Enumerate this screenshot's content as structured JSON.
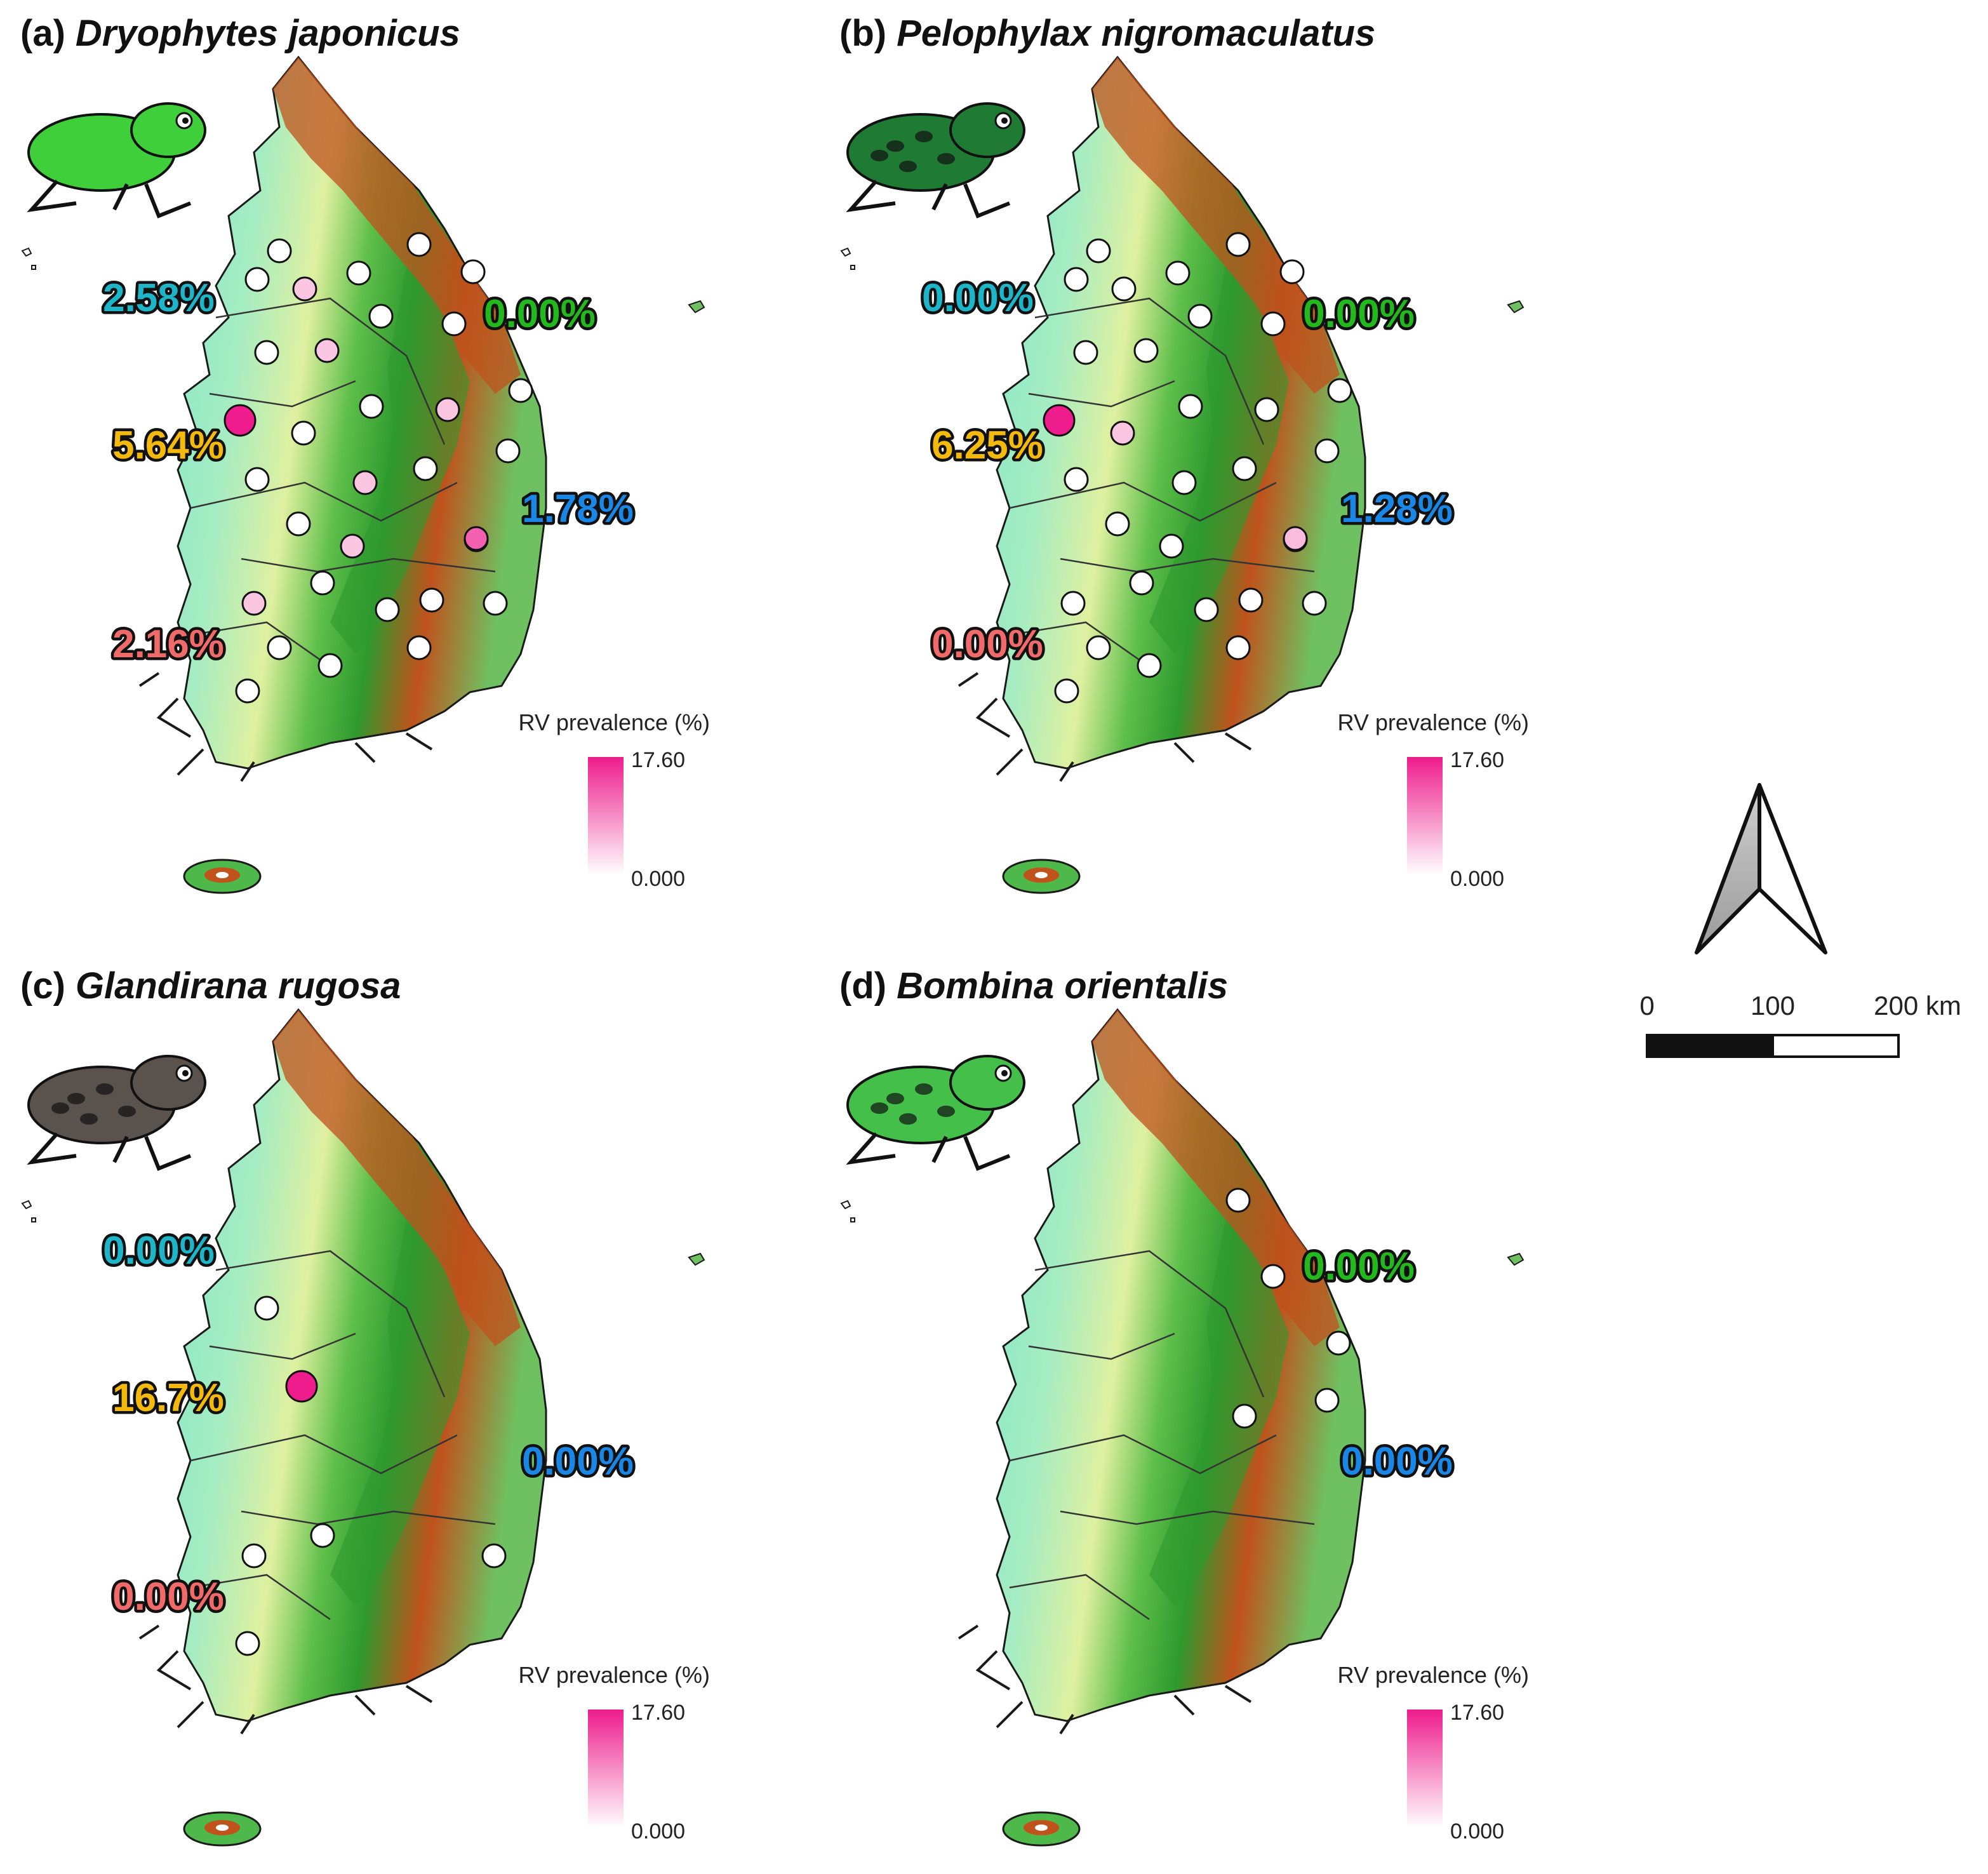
{
  "colors": {
    "accent_magenta": "#ee1c8c",
    "low_white": "#ffffff",
    "lowland": "#7fe8c8",
    "midland": "#dff0a0",
    "highland": "#2e9a2e",
    "peak": "#c0521c",
    "region_west": "#1fb5c8",
    "region_east": "#22b81e",
    "region_center": "#f3b90c",
    "region_southeast": "#1a87e6",
    "region_southwest": "#f06a6a"
  },
  "panels": [
    {
      "label": "(a)",
      "species": "Dryophytes japonicus",
      "icon": "tree-frog-icon",
      "stats": {
        "west": "2.58%",
        "east": "0.00%",
        "center": "5.64%",
        "southeast": "1.78%",
        "southwest": "2.16%"
      },
      "sites": [
        0,
        0,
        0.25,
        0,
        0,
        0,
        0,
        0,
        0.25,
        0,
        0,
        0.25,
        0,
        1,
        0,
        0.25,
        0,
        0,
        0,
        0,
        0.25,
        0,
        0.25,
        0,
        0,
        0.7,
        0,
        0,
        0,
        0,
        0.25,
        0
      ]
    },
    {
      "label": "(b)",
      "species": "Pelophylax nigromaculatus",
      "icon": "pond-frog-icon",
      "stats": {
        "west": "0.00%",
        "east": "0.00%",
        "center": "6.25%",
        "southeast": "1.28%",
        "southwest": "0.00%"
      },
      "sites": [
        0,
        0,
        0,
        0,
        0,
        0,
        0,
        0,
        0,
        0,
        0,
        0,
        0,
        1,
        0.25,
        0,
        0,
        0,
        0,
        0,
        0,
        0,
        0,
        0,
        0,
        0.3,
        0,
        0,
        0,
        0,
        0,
        0
      ]
    },
    {
      "label": "(c)",
      "species": "Glandirana rugosa",
      "icon": "wrinkled-frog-icon",
      "stats": {
        "west": "0.00%",
        "east": "",
        "center": "16.7%",
        "southeast": "0.00%",
        "southwest": "0.00%"
      },
      "sites": [
        0,
        1,
        0,
        0,
        0,
        0
      ]
    },
    {
      "label": "(d)",
      "species": "Bombina orientalis",
      "icon": "toad-icon",
      "stats": {
        "west": "",
        "east": "0.00%",
        "center": "",
        "southeast": "0.00%",
        "southwest": ""
      },
      "sites": [
        0,
        0,
        0,
        0,
        0
      ]
    }
  ],
  "legend": {
    "title": "RV prevalence (%)",
    "max": "17.60",
    "min": "0.000"
  },
  "north_arrow": "north-arrow-icon",
  "scale_bar": {
    "labels": [
      "0",
      "100",
      "200 km"
    ]
  }
}
